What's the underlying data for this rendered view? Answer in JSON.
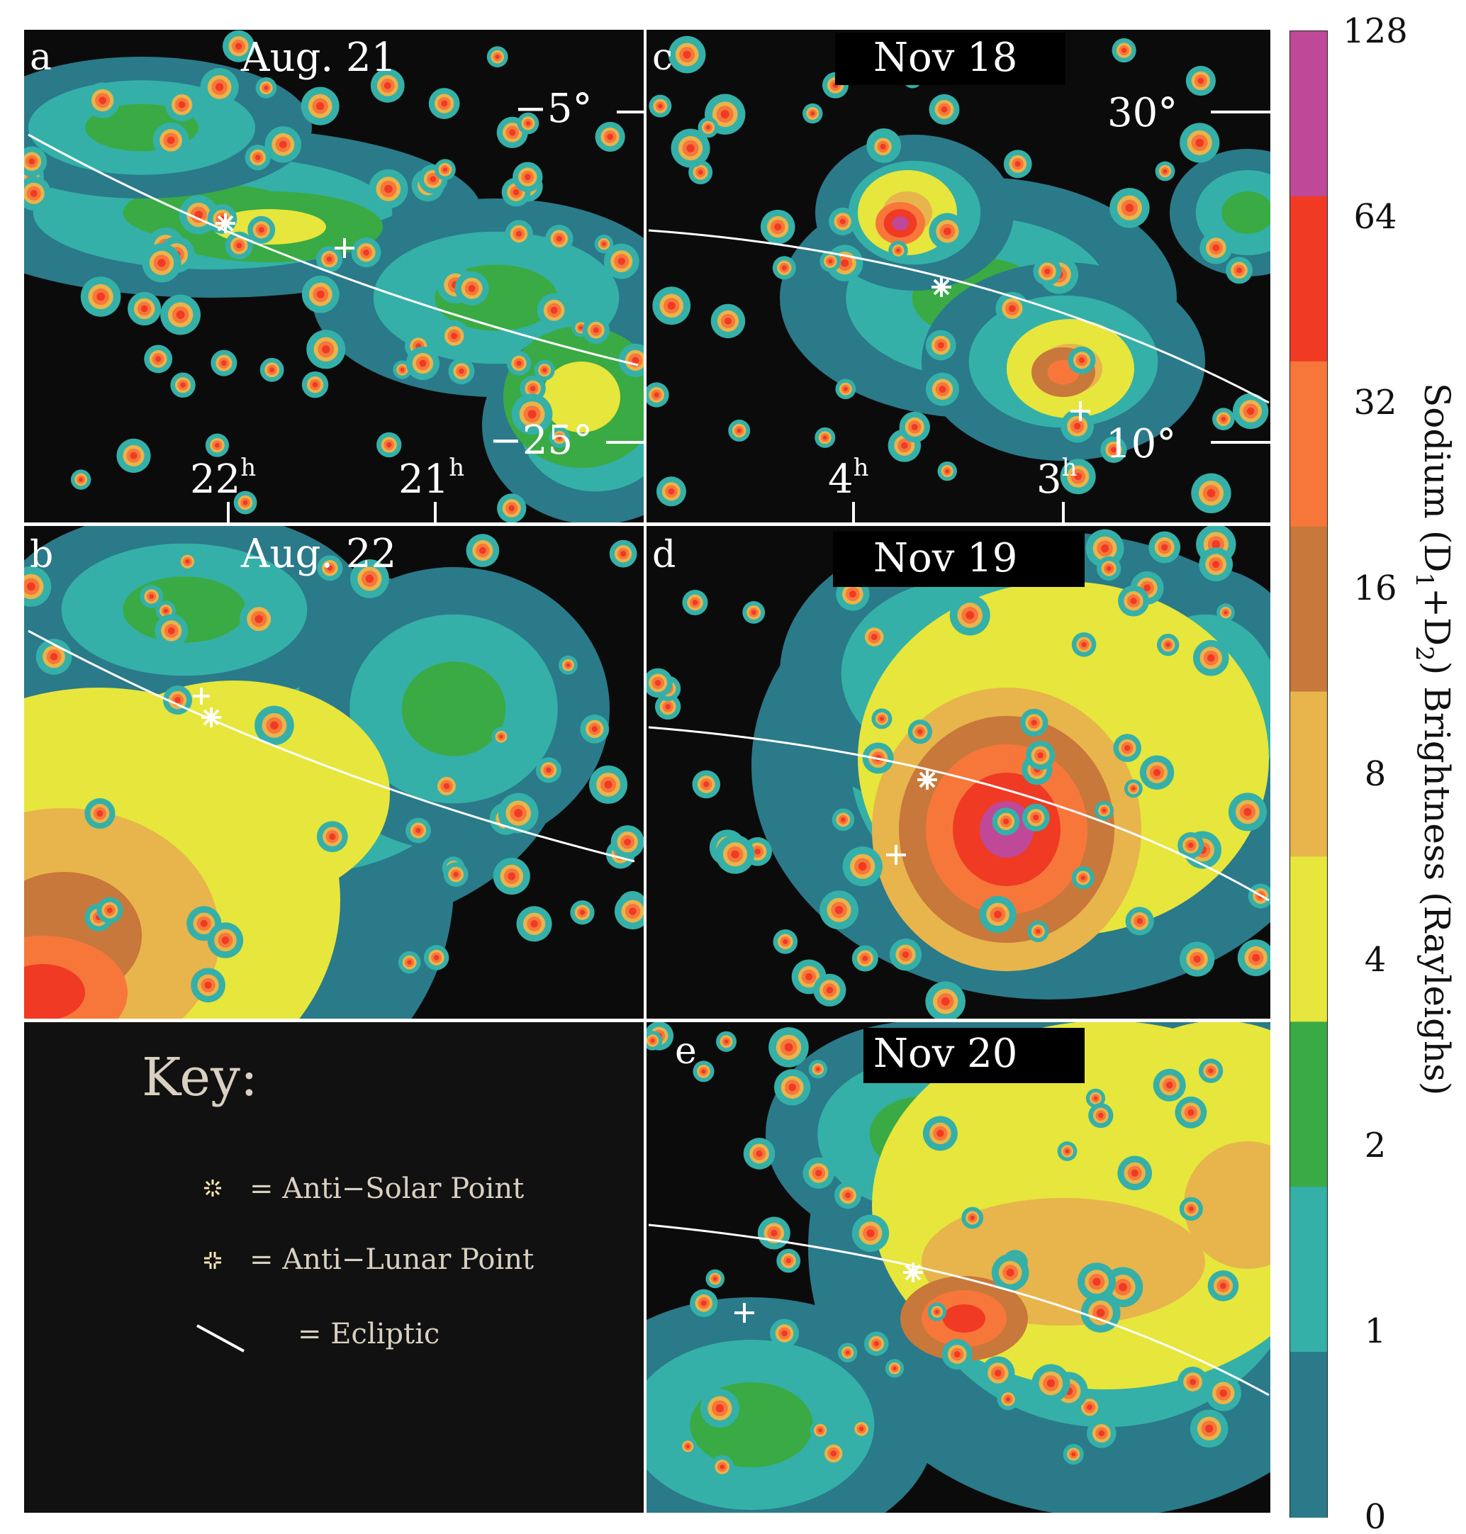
{
  "chart_data": {
    "type": "heatmap",
    "colorbar": {
      "ticks": [
        "128",
        "64",
        "32",
        "16",
        "8",
        "4",
        "2",
        "1",
        "0"
      ],
      "label_prefix": "Sodium (D",
      "label_sub1": "1",
      "label_mid": "+D",
      "label_sub2": "2",
      "label_suffix": ") Brightness (Rayleighs)",
      "colors": [
        "#c04898",
        "#f03a24",
        "#f7773a",
        "#c8783a",
        "#e8b44c",
        "#e6e63c",
        "#3aaa44",
        "#34b0a8",
        "#2a7a8a"
      ]
    },
    "panels": [
      {
        "id": "a",
        "letter": "a",
        "date": "Aug. 21",
        "dec_labels": [
          "−5°",
          "−25°"
        ],
        "ra_labels": [
          {
            "h": "22",
            "sup": "h"
          },
          {
            "h": "21",
            "sup": "h"
          }
        ],
        "markers": [
          "anti-solar",
          "anti-lunar"
        ]
      },
      {
        "id": "b",
        "letter": "b",
        "date": "Aug. 22",
        "markers": [
          "anti-lunar",
          "anti-solar"
        ]
      },
      {
        "id": "c",
        "letter": "c",
        "date": "Nov 18",
        "dec_labels": [
          "30°",
          "10°"
        ],
        "ra_labels": [
          {
            "h": "4",
            "sup": "h"
          },
          {
            "h": "3",
            "sup": "h"
          }
        ],
        "markers": [
          "anti-solar",
          "anti-lunar"
        ]
      },
      {
        "id": "d",
        "letter": "d",
        "date": "Nov 19",
        "markers": [
          "anti-solar",
          "anti-lunar"
        ],
        "peak_brightness_R": 64
      },
      {
        "id": "e",
        "letter": "e",
        "date": "Nov 20",
        "markers": [
          "anti-solar",
          "anti-lunar"
        ]
      }
    ],
    "key": {
      "title": "Key:",
      "items": [
        {
          "symbol": "anti-solar",
          "text": "= Anti−Solar Point"
        },
        {
          "symbol": "anti-lunar",
          "text": "= Anti−Lunar Point"
        },
        {
          "symbol": "ecliptic",
          "text": "= Ecliptic"
        }
      ]
    }
  }
}
